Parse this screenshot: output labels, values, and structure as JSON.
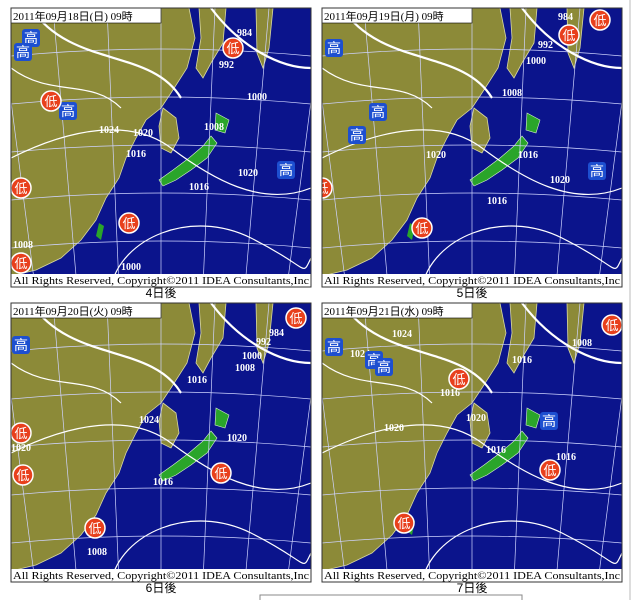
{
  "panels": [
    {
      "date": "2011年09月18日(日) 09時",
      "caption": "4日後",
      "copyright": "All Rights Reserved, Copyright©2011 IDEA Consultants,Inc",
      "highs": [
        "高",
        "高",
        "高",
        "高"
      ],
      "lows": [
        "低",
        "低",
        "低",
        "低",
        "低"
      ],
      "isobar_labels": [
        "984",
        "992",
        "1000",
        "1008",
        "1020",
        "1016",
        "1016",
        "1020",
        "1024",
        "1008",
        "1000"
      ]
    },
    {
      "date": "2011年09月19日(月) 09時",
      "caption": "5日後",
      "copyright": "All Rights Reserved, Copyright©2011 IDEA Consultants,Inc",
      "highs": [
        "高",
        "高",
        "高",
        "高"
      ],
      "lows": [
        "低",
        "低",
        "低",
        "低"
      ],
      "isobar_labels": [
        "984",
        "992",
        "1000",
        "1008",
        "1020",
        "1016",
        "1020",
        "1016"
      ]
    },
    {
      "date": "2011年09月20日(火) 09時",
      "caption": "6日後",
      "copyright": "All Rights Reserved, Copyright©2011 IDEA Consultants,Inc",
      "highs": [
        "高"
      ],
      "lows": [
        "低",
        "低",
        "低",
        "低",
        "低"
      ],
      "isobar_labels": [
        "984",
        "992",
        "1000",
        "1008",
        "1016",
        "1024",
        "1020",
        "1016",
        "1020",
        "1008"
      ]
    },
    {
      "date": "2011年09月21日(水) 09時",
      "caption": "7日後",
      "copyright": "All Rights Reserved, Copyright©2011 IDEA Consultants,Inc",
      "highs": [
        "高",
        "高",
        "高",
        "高"
      ],
      "lows": [
        "低",
        "低",
        "低",
        "低"
      ],
      "isobar_labels": [
        "1024",
        "1024",
        "1016",
        "1008",
        "1016",
        "1020",
        "1020",
        "1016",
        "1016"
      ]
    }
  ]
}
